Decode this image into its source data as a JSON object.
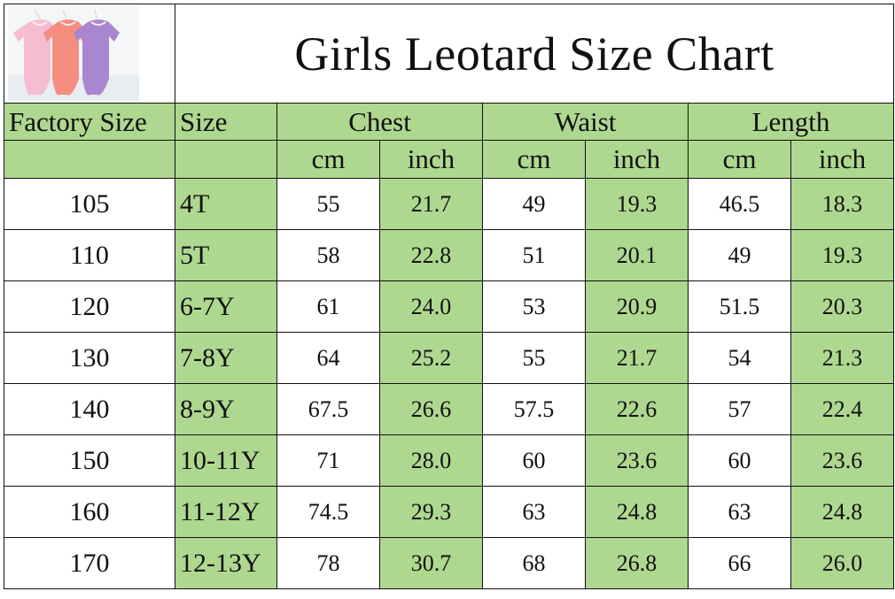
{
  "title": "Girls Leotard Size Chart",
  "image": {
    "alt": "three-leotards-pink-coral-purple",
    "colors": [
      "#f6b8cf",
      "#f58a7e",
      "#a884cf"
    ]
  },
  "colors": {
    "accent_green": "#aed88f",
    "border": "#111111",
    "background": "#ffffff"
  },
  "headers": {
    "factory_size": "Factory Size",
    "size": "Size",
    "groups": [
      "Chest",
      "Waist",
      "Length"
    ],
    "units": [
      "cm",
      "inch",
      "cm",
      "inch",
      "cm",
      "inch"
    ]
  },
  "rows": [
    {
      "factory": "105",
      "size": "4T",
      "chest_cm": "55",
      "chest_in": "21.7",
      "waist_cm": "49",
      "waist_in": "19.3",
      "length_cm": "46.5",
      "length_in": "18.3"
    },
    {
      "factory": "110",
      "size": "5T",
      "chest_cm": "58",
      "chest_in": "22.8",
      "waist_cm": "51",
      "waist_in": "20.1",
      "length_cm": "49",
      "length_in": "19.3"
    },
    {
      "factory": "120",
      "size": "6-7Y",
      "chest_cm": "61",
      "chest_in": "24.0",
      "waist_cm": "53",
      "waist_in": "20.9",
      "length_cm": "51.5",
      "length_in": "20.3"
    },
    {
      "factory": "130",
      "size": "7-8Y",
      "chest_cm": "64",
      "chest_in": "25.2",
      "waist_cm": "55",
      "waist_in": "21.7",
      "length_cm": "54",
      "length_in": "21.3"
    },
    {
      "factory": "140",
      "size": "8-9Y",
      "chest_cm": "67.5",
      "chest_in": "26.6",
      "waist_cm": "57.5",
      "waist_in": "22.6",
      "length_cm": "57",
      "length_in": "22.4"
    },
    {
      "factory": "150",
      "size": "10-11Y",
      "chest_cm": "71",
      "chest_in": "28.0",
      "waist_cm": "60",
      "waist_in": "23.6",
      "length_cm": "60",
      "length_in": "23.6"
    },
    {
      "factory": "160",
      "size": "11-12Y",
      "chest_cm": "74.5",
      "chest_in": "29.3",
      "waist_cm": "63",
      "waist_in": "24.8",
      "length_cm": "63",
      "length_in": "24.8"
    },
    {
      "factory": "170",
      "size": "12-13Y",
      "chest_cm": "78",
      "chest_in": "30.7",
      "waist_cm": "68",
      "waist_in": "26.8",
      "length_cm": "66",
      "length_in": "26.0"
    }
  ]
}
